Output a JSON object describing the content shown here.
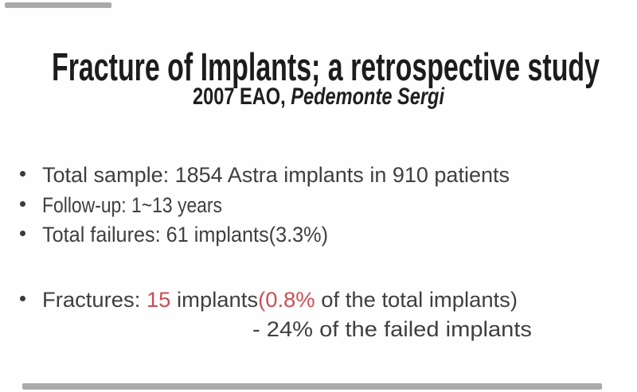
{
  "slide": {
    "title": "Fracture of Implants; a retrospective study",
    "subtitle": {
      "prefix": "2007 EAO, ",
      "author": "Pedemonte Sergi"
    },
    "bullets": [
      "Total sample: 1854 Astra implants in 910 patients",
      "Follow-up: 1~13 years",
      "Total failures: 61 implants(3.3%)"
    ],
    "fracture_line": {
      "prefix": "Fractures: ",
      "count": "15",
      "mid": " implants",
      "highlight": "(0.8%",
      "suffix": " of the total implants)"
    },
    "fracture_note": "- 24% of the failed implants",
    "colors": {
      "background": "#fefefe",
      "title_text": "#1c1c1c",
      "body_text": "#3f3f3f",
      "highlight_red": "#c94f57",
      "artifact_bar": "#454545"
    }
  }
}
